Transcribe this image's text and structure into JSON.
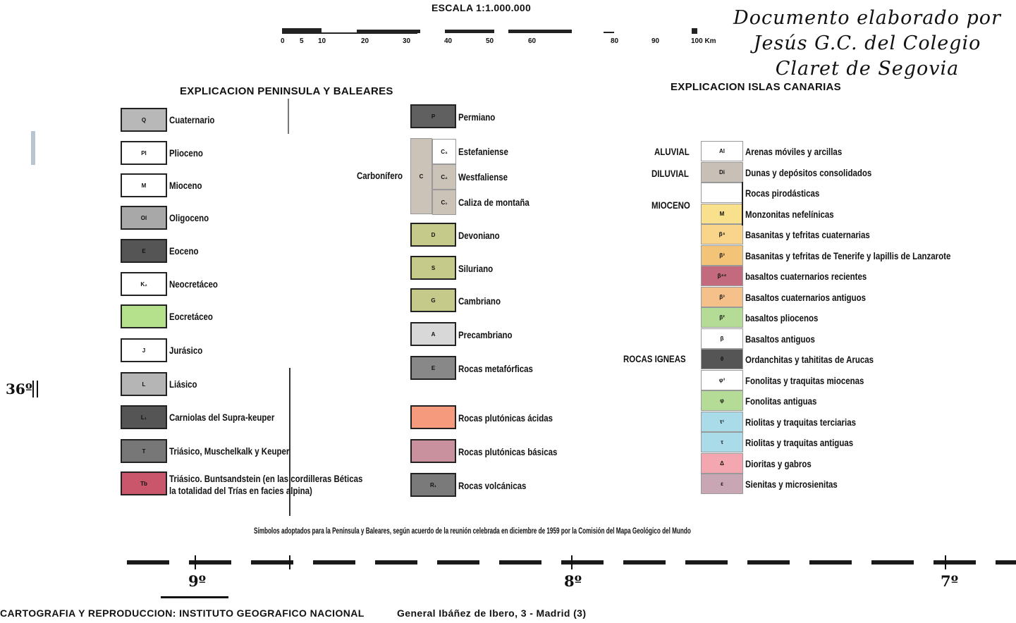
{
  "scale": {
    "title": "ESCALA 1:1.000.000",
    "ticks": [
      "0",
      "5",
      "10",
      "20",
      "30",
      "40",
      "50",
      "60",
      "80",
      "90",
      "100 Km"
    ]
  },
  "credit": {
    "line1": "Documento elaborado por",
    "line2": "Jesús G.C. del Colegio",
    "line3": "Claret de Segovia"
  },
  "peninsula": {
    "title": "EXPLICACION PENINSULA Y BALEARES",
    "left": [
      {
        "sym": "Q",
        "label": "Cuaternario",
        "color": "#b8b8b8"
      },
      {
        "sym": "Pl",
        "label": "Plioceno",
        "color": "#ffffff"
      },
      {
        "sym": "M",
        "label": "Mioceno",
        "color": "#ffffff"
      },
      {
        "sym": "Ol",
        "label": "Oligoceno",
        "color": "#a8a8a8"
      },
      {
        "sym": "E",
        "label": "Eoceno",
        "color": "#555555"
      },
      {
        "sym": "K₂",
        "label": "Neocretáceo",
        "color": "#ffffff"
      },
      {
        "sym": "",
        "label": "Eocretáceo",
        "color": "#b5e08c"
      },
      {
        "sym": "J",
        "label": "Jurásico",
        "color": "#ffffff"
      },
      {
        "sym": "L",
        "label": "Liásico",
        "color": "#b5b5b5"
      },
      {
        "sym": "L₁",
        "label": "Carniolas del Supra-keuper",
        "color": "#555555"
      },
      {
        "sym": "T",
        "label": "Triásico, Muschelkalk y Keuper",
        "color": "#777777"
      },
      {
        "sym": "Tb",
        "label": "Triásico. Buntsandstein (en las cordilleras Béticas",
        "label2": "la totalidad del Trías en facies alpina)",
        "color": "#c9566a"
      }
    ],
    "middle": [
      {
        "sym": "P",
        "label": "Permiano",
        "color": "#606060"
      },
      {
        "sym": "D",
        "label": "Devoniano",
        "color": "#c5c98a"
      },
      {
        "sym": "S",
        "label": "Siluriano",
        "color": "#c5c98a"
      },
      {
        "sym": "G",
        "label": "Cambriano",
        "color": "#c5c98a"
      },
      {
        "sym": "A",
        "label": "Precambriano",
        "color": "#d8d8d8"
      },
      {
        "sym": "E",
        "label": "Rocas metafórficas",
        "color": "#888888"
      },
      {
        "sym": "",
        "label": "Rocas plutónicas ácidas",
        "color": "#f59a7c"
      },
      {
        "sym": "",
        "label": "Rocas plutónicas básicas",
        "color": "#c9909e"
      },
      {
        "sym": "R₁",
        "label": "Rocas volcánicas",
        "color": "#7a7a7a"
      }
    ],
    "carbonifero": {
      "group": "Carbonífero",
      "sym": "C",
      "color": "#cbc2b8",
      "items": [
        {
          "sym": "C₃",
          "label": "Estefaniense",
          "color": "#ffffff"
        },
        {
          "sym": "C₂",
          "label": "Westfaliense",
          "color": "#cbc2b8"
        },
        {
          "sym": "C₁",
          "label": "Caliza de montaña",
          "color": "#cbc2b8"
        }
      ]
    }
  },
  "canarias": {
    "title": "EXPLICACION ISLAS CANARIAS",
    "groups": [
      "ALUVIAL",
      "DILUVIAL",
      "MIOCENO",
      "ROCAS IGNEAS"
    ],
    "items": [
      {
        "sym": "Al",
        "label": "Arenas móviles y arcillas",
        "color": "#ffffff"
      },
      {
        "sym": "Di",
        "label": "Dunas y depósitos consolidados",
        "color": "#c8c0b6"
      },
      {
        "sym": "",
        "label": "Rocas pirodásticas",
        "color": "#ffffff"
      },
      {
        "sym": "M",
        "label": "Monzonitas nefelínicas",
        "color": "#f8e08c"
      },
      {
        "sym": "β⁴",
        "label": "Basanitas y tefritas cuaternarias",
        "color": "#f8d58a"
      },
      {
        "sym": "β³",
        "label": "Basanitas y tefritas de Tenerife y lapillis de Lanzarote",
        "color": "#f3c378"
      },
      {
        "sym": "β⁴⁴",
        "label": "basaltos cuaternarios recientes",
        "color": "#c46a7e"
      },
      {
        "sym": "β³",
        "label": "Basaltos cuaternarios antiguos",
        "color": "#f6c08a"
      },
      {
        "sym": "β²",
        "label": "basaltos pliocenos",
        "color": "#b5dc96"
      },
      {
        "sym": "β",
        "label": "Basaltos antiguos",
        "color": "#ffffff"
      },
      {
        "sym": "θ",
        "label": "Ordanchitas y tahititas de Arucas",
        "color": "#555555"
      },
      {
        "sym": "φ³",
        "label": "Fonolitas y traquitas miocenas",
        "color": "#ffffff"
      },
      {
        "sym": "φ",
        "label": "Fonolitas antiguas",
        "color": "#b5dc96"
      },
      {
        "sym": "τ¹",
        "label": "Riolitas y traquitas terciarias",
        "color": "#a9dce8"
      },
      {
        "sym": "τ",
        "label": "Riolitas y traquitas antiguas",
        "color": "#a9dce8"
      },
      {
        "sym": "Δ",
        "label": "Dioritas y gabros",
        "color": "#f4a7b0"
      },
      {
        "sym": "ε",
        "label": "Sienitas y microsienitas",
        "color": "#c9a6b4"
      }
    ]
  },
  "note": "Símbolos adoptados para la Península y Baleares, según acuerdo de la reunión celebrada en diciembre de 1959 por la Comisión del Mapa Geológico del Mundo",
  "latitude": "36º",
  "longitudes": [
    "9º",
    "8º",
    "7º"
  ],
  "footer": {
    "left": "CARTOGRAFIA Y REPRODUCCION: INSTITUTO GEOGRAFICO NACIONAL",
    "right": "General Ibáñez de Ibero, 3 - Madrid (3)"
  }
}
